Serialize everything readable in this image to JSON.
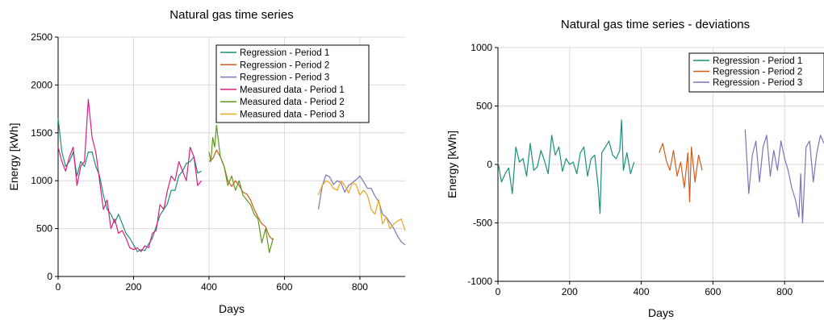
{
  "chart_data": [
    {
      "type": "line",
      "title": "Natural gas time series",
      "xlabel": "Days",
      "ylabel": "Energy [kWh]",
      "xlim": [
        0,
        920
      ],
      "ylim": [
        0,
        2500
      ],
      "x_ticks": [
        0,
        200,
        400,
        600,
        800
      ],
      "y_ticks": [
        0,
        500,
        1000,
        1500,
        2000,
        2500
      ],
      "grid": true,
      "legend_position": "top-right",
      "series": [
        {
          "name": "Regression - Period 1",
          "color": "#1a9077",
          "x": [
            0,
            10,
            20,
            30,
            40,
            50,
            60,
            70,
            80,
            90,
            100,
            110,
            120,
            130,
            140,
            150,
            160,
            170,
            180,
            190,
            200,
            210,
            220,
            230,
            240,
            250,
            260,
            270,
            280,
            290,
            300,
            310,
            320,
            330,
            340,
            350,
            360,
            370,
            380
          ],
          "y": [
            1650,
            1300,
            1150,
            1200,
            1300,
            1050,
            1200,
            1150,
            1300,
            1300,
            1150,
            1050,
            850,
            700,
            650,
            560,
            650,
            550,
            450,
            400,
            330,
            260,
            280,
            270,
            340,
            400,
            520,
            640,
            700,
            760,
            900,
            900,
            1050,
            1100,
            1180,
            1200,
            1250,
            1080,
            1100
          ]
        },
        {
          "name": "Regression - Period 2",
          "color": "#cf5c1a",
          "x": [
            400,
            410,
            420,
            430,
            440,
            450,
            460,
            470,
            480,
            490,
            500,
            510,
            520,
            530,
            540,
            550,
            560,
            570
          ],
          "y": [
            1200,
            1230,
            1320,
            1250,
            1150,
            1000,
            940,
            1000,
            950,
            880,
            860,
            800,
            700,
            620,
            550,
            520,
            420,
            380
          ]
        },
        {
          "name": "Regression - Period 3",
          "color": "#7b74b8",
          "x": [
            690,
            700,
            710,
            720,
            730,
            740,
            750,
            760,
            770,
            780,
            790,
            800,
            810,
            820,
            830,
            840,
            850,
            860,
            870,
            880,
            890,
            900,
            910,
            920
          ],
          "y": [
            700,
            940,
            1060,
            1040,
            960,
            1000,
            980,
            880,
            950,
            980,
            1010,
            1050,
            990,
            920,
            920,
            840,
            780,
            650,
            620,
            560,
            500,
            420,
            360,
            330
          ]
        },
        {
          "name": "Measured data - Period 1",
          "color": "#da1f82",
          "x": [
            0,
            10,
            20,
            30,
            40,
            50,
            60,
            70,
            80,
            90,
            100,
            110,
            120,
            130,
            140,
            150,
            160,
            170,
            180,
            190,
            200,
            210,
            220,
            230,
            240,
            250,
            260,
            270,
            280,
            290,
            300,
            310,
            320,
            330,
            340,
            350,
            360,
            370,
            380
          ],
          "y": [
            1350,
            1200,
            1100,
            1250,
            1350,
            950,
            1150,
            1200,
            1850,
            1450,
            1300,
            1000,
            700,
            800,
            500,
            600,
            450,
            480,
            400,
            300,
            280,
            300,
            260,
            320,
            300,
            450,
            480,
            750,
            700,
            900,
            1050,
            1000,
            1200,
            1100,
            1000,
            1350,
            1250,
            950,
            1000
          ]
        },
        {
          "name": "Measured data - Period 2",
          "color": "#5a9a1a",
          "x": [
            400,
            405,
            410,
            415,
            420,
            430,
            440,
            450,
            460,
            470,
            480,
            490,
            500,
            510,
            520,
            530,
            540,
            550,
            560,
            570
          ],
          "y": [
            1300,
            1200,
            1450,
            1350,
            1580,
            1250,
            1150,
            950,
            1050,
            900,
            1000,
            850,
            800,
            750,
            650,
            600,
            350,
            500,
            250,
            400
          ]
        },
        {
          "name": "Measured data - Period 3",
          "color": "#eba619",
          "x": [
            690,
            700,
            710,
            720,
            730,
            740,
            750,
            760,
            770,
            780,
            790,
            800,
            810,
            820,
            830,
            840,
            850,
            860,
            870,
            880,
            890,
            900,
            910,
            920
          ],
          "y": [
            850,
            950,
            1000,
            980,
            920,
            900,
            1000,
            950,
            870,
            980,
            960,
            850,
            900,
            850,
            700,
            650,
            800,
            550,
            620,
            500,
            550,
            580,
            600,
            480
          ]
        }
      ]
    },
    {
      "type": "line",
      "title": "Natural gas time series - deviations",
      "xlabel": "Days",
      "ylabel": "Energy [kWh]",
      "xlim": [
        0,
        910
      ],
      "ylim": [
        -1000,
        1000
      ],
      "x_ticks": [
        0,
        200,
        400,
        600,
        800
      ],
      "y_ticks": [
        -1000,
        -500,
        0,
        500,
        1000
      ],
      "grid": true,
      "legend_position": "top-right",
      "series": [
        {
          "name": "Regression - Period 1",
          "color": "#1a9077",
          "x": [
            0,
            10,
            20,
            30,
            40,
            50,
            60,
            70,
            80,
            90,
            100,
            110,
            120,
            130,
            140,
            150,
            160,
            170,
            180,
            190,
            200,
            210,
            220,
            230,
            240,
            250,
            260,
            270,
            280,
            285,
            290,
            300,
            310,
            320,
            330,
            340,
            345,
            350,
            360,
            370,
            380
          ],
          "y": [
            20,
            -150,
            -80,
            -30,
            -250,
            150,
            20,
            50,
            -100,
            180,
            -50,
            -20,
            120,
            30,
            -80,
            250,
            80,
            150,
            -60,
            50,
            0,
            20,
            -80,
            100,
            150,
            -100,
            50,
            80,
            -200,
            -420,
            100,
            150,
            200,
            80,
            50,
            120,
            380,
            -50,
            100,
            -80,
            20
          ]
        },
        {
          "name": "Regression - Period 2",
          "color": "#cf5c1a",
          "x": [
            450,
            460,
            470,
            480,
            490,
            500,
            510,
            520,
            530,
            535,
            540,
            550,
            560,
            570
          ],
          "y": [
            100,
            180,
            30,
            -50,
            120,
            -100,
            20,
            -200,
            100,
            -320,
            150,
            -150,
            80,
            -50
          ]
        },
        {
          "name": "Regression - Period 3",
          "color": "#7b74b8",
          "x": [
            690,
            700,
            710,
            720,
            730,
            740,
            750,
            760,
            770,
            780,
            790,
            800,
            810,
            820,
            830,
            840,
            845,
            850,
            860,
            870,
            880,
            890,
            900,
            910
          ],
          "y": [
            300,
            -250,
            80,
            200,
            -150,
            150,
            250,
            -100,
            120,
            -50,
            200,
            50,
            -50,
            -200,
            -300,
            -450,
            -80,
            -500,
            150,
            200,
            -150,
            100,
            250,
            180
          ]
        }
      ]
    }
  ]
}
